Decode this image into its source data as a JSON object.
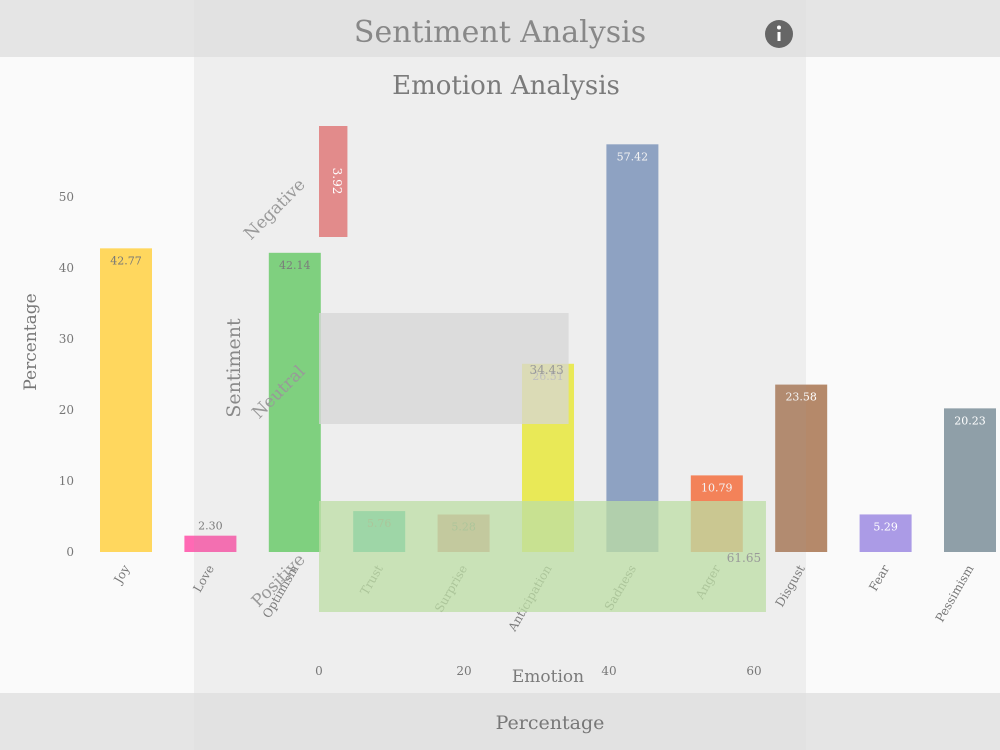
{
  "colors": {
    "info": "#666666"
  },
  "emotion_chart": {
    "title": "Emotion Analysis",
    "xlabel": "Emotion",
    "ylabel": "Percentage"
  },
  "sentiment_chart": {
    "title": "Sentiment Analysis",
    "xlabel": "Percentage",
    "ylabel": "Sentiment"
  },
  "chart_data": [
    {
      "type": "bar",
      "title": "Emotion Analysis",
      "xlabel": "Emotion",
      "ylabel": "Percentage",
      "ylim": [
        0,
        60
      ],
      "yticks": [
        0,
        10,
        20,
        30,
        40,
        50
      ],
      "categories": [
        "Joy",
        "Love",
        "Optimism",
        "Trust",
        "Surprise",
        "Anticipation",
        "Sadness",
        "Anger",
        "Disgust",
        "Fear",
        "Pessimism"
      ],
      "values": [
        42.77,
        2.3,
        42.14,
        5.76,
        5.28,
        26.51,
        57.42,
        10.79,
        23.58,
        5.29,
        20.23
      ],
      "labels": [
        "42.77",
        "2.30",
        "42.14",
        "5.76",
        "5.28",
        "26.51",
        "57.42",
        "10.79",
        "23.58",
        "5.29",
        "20.23"
      ],
      "colors": [
        "#ffd75e",
        "#ff69b4",
        "#7bd87b",
        "#38c4b4",
        "#e08888",
        "#f4f44e",
        "#8da3c8",
        "#ff7f50",
        "#b5896a",
        "#ab9be6",
        "#8f9fa8"
      ],
      "grid": false,
      "legend": false
    },
    {
      "type": "bar",
      "orientation": "horizontal",
      "title": "Sentiment Analysis",
      "xlabel": "Percentage",
      "ylabel": "Sentiment",
      "xlim": [
        0,
        62
      ],
      "xticks": [
        0,
        20,
        40,
        60
      ],
      "categories": [
        "Negative",
        "Neutral",
        "Positive"
      ],
      "values": [
        3.92,
        34.43,
        61.65
      ],
      "labels": [
        "3.92",
        "34.43",
        "61.65"
      ],
      "colors": [
        "#e08080",
        "#d6d6d6",
        "#bcdda4"
      ],
      "grid": false,
      "legend": false
    }
  ]
}
